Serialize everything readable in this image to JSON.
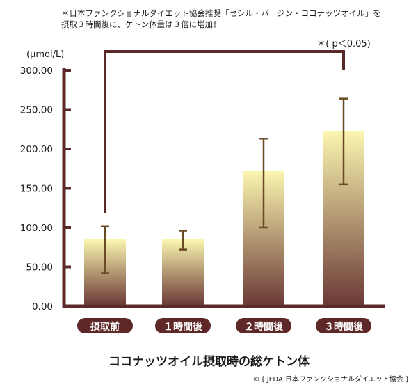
{
  "note": {
    "line1": "＊日本ファンクショナルダイエット協会推奨「セシル・バージン・ココナッツオイル」を",
    "line2": "摂取３時間後に、ケトン体量は３倍に増加！"
  },
  "subtitle": "ココナッツオイル摂取時の総ケトン体",
  "copyright": "© [ JFDA 日本ファンクショナルダイエット協会 ]",
  "colors": {
    "axis": "#5a2a2a",
    "bar_top": "#fbf6b0",
    "bar_bottom": "#6b3a36",
    "error_bar": "#6b4a26",
    "label_bg": "#5e2828",
    "label_text": "#ffffff"
  },
  "chart_data": {
    "type": "bar",
    "categories": [
      "摂取前",
      "１時間後",
      "２時間後",
      "３時間後"
    ],
    "values": [
      85,
      85,
      172,
      223
    ],
    "error_low": [
      42,
      72,
      100,
      155
    ],
    "error_high": [
      102,
      96,
      213,
      264
    ],
    "ylabel": "(μmol/L)",
    "ylim": [
      0,
      300
    ],
    "yticks": [
      0,
      50,
      100,
      150,
      200,
      250,
      300
    ],
    "ytick_labels": [
      "0.00",
      "50.00",
      "100.00",
      "150.00",
      "200.00",
      "250.00",
      "300.00"
    ],
    "grid": false,
    "annotation": {
      "text": "＊( p＜0.05)",
      "from_category": 0,
      "to_category": 3
    }
  }
}
